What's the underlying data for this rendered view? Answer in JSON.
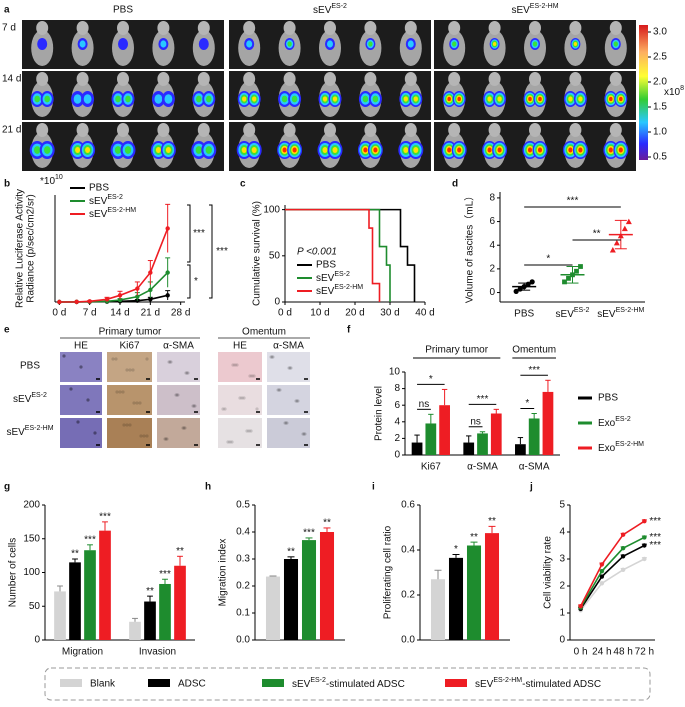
{
  "panel_a": {
    "label": "a",
    "groups": [
      "PBS",
      [
        "sEV",
        "ES-2"
      ],
      [
        "sEV",
        "ES-2-HM"
      ]
    ],
    "rows": [
      "7 d",
      "14 d",
      "21 d"
    ],
    "colorbar": {
      "lim": [
        0.44,
        3.14
      ],
      "ticks": [
        0.5,
        {
          "value": 1.0,
          "label": "1.0"
        },
        1.5,
        {
          "value": 2.0,
          "label": "2.0"
        },
        2.5,
        {
          "value": 3.0,
          "label": "3.0"
        }
      ],
      "unit": [
        "x10",
        "8"
      ]
    }
  },
  "panel_e": {
    "label": "e",
    "groups": [
      "Primary tumor",
      "Omentum"
    ],
    "columns": [
      "HE",
      "Ki67",
      "α-SMA",
      "HE",
      "α-SMA"
    ],
    "rows": [
      "PBS",
      [
        "sEV",
        "ES-2"
      ],
      [
        "sEV",
        "ES-2-HM"
      ]
    ]
  },
  "chart_data": [
    {
      "type": "line",
      "label": "b",
      "scale_note": [
        "*10",
        "10"
      ],
      "ylabel": [
        "Relative Luciferase Activity",
        "Radiance (p/sec/cm2/sr)"
      ],
      "x": [
        0,
        4,
        7,
        11,
        14,
        18,
        21,
        25
      ],
      "xlim": [
        -1,
        29
      ],
      "xticks": [
        {
          "value": 0,
          "label": "0 d"
        },
        {
          "value": 7,
          "label": "7 d"
        },
        {
          "value": 14,
          "label": "14 d"
        },
        {
          "value": 21,
          "label": "21 d"
        },
        {
          "value": 28,
          "label": "28 d"
        }
      ],
      "ylim": [
        0,
        8
      ],
      "legend": "upper left",
      "series": [
        {
          "name": "PBS",
          "color": "#000000",
          "values": [
            0,
            0,
            0.01,
            0.02,
            0.05,
            0.1,
            0.2,
            0.5
          ],
          "errors": [
            0,
            0,
            0,
            0.02,
            0.05,
            0.08,
            0.15,
            0.35
          ]
        },
        {
          "name": [
            "sEV",
            "ES-2"
          ],
          "color": "#1e8c2e",
          "values": [
            0,
            0.01,
            0.02,
            0.05,
            0.15,
            0.4,
            0.9,
            2.2
          ],
          "errors": [
            0,
            0,
            0.02,
            0.05,
            0.1,
            0.3,
            0.6,
            1.1
          ]
        },
        {
          "name": [
            "sEV",
            "ES-2-HM"
          ],
          "color": "#ee1d23",
          "values": [
            0,
            0.01,
            0.05,
            0.2,
            0.5,
            1.0,
            2.2,
            5.5
          ],
          "errors": [
            0,
            0.01,
            0.05,
            0.15,
            0.3,
            0.5,
            0.9,
            1.8
          ]
        }
      ],
      "annotations": [
        "***",
        "*",
        "***"
      ]
    },
    {
      "type": "line",
      "step": true,
      "label": "c",
      "ylabel": [
        "Cumulative survival (%)"
      ],
      "annotation": "P <0.001",
      "xlim": [
        0,
        40
      ],
      "xticks": [
        {
          "value": 0,
          "label": "0 d"
        },
        {
          "value": 10,
          "label": "10 d"
        },
        {
          "value": 20,
          "label": "20 d"
        },
        {
          "value": 30,
          "label": "30 d"
        },
        {
          "value": 40,
          "label": "40 d"
        }
      ],
      "ylim": [
        0,
        105
      ],
      "yticks": [
        0,
        50,
        100
      ],
      "legend": "lower left",
      "series": [
        {
          "name": "PBS",
          "color": "#000000",
          "x": [
            0,
            33,
            35,
            37
          ],
          "values": [
            100,
            60,
            40,
            0
          ]
        },
        {
          "name": [
            "sEV",
            "ES-2"
          ],
          "color": "#1e8c2e",
          "x": [
            0,
            27,
            29,
            30
          ],
          "values": [
            100,
            60,
            40,
            0
          ]
        },
        {
          "name": [
            "sEV",
            "ES-2-HM"
          ],
          "color": "#ee1d23",
          "x": [
            0,
            24,
            25,
            27
          ],
          "values": [
            100,
            80,
            20,
            0
          ]
        }
      ]
    },
    {
      "type": "scatter",
      "label": "d",
      "ylabel": [
        "Volume of ascites（mL）"
      ],
      "categories": [
        "PBS",
        [
          "sEV",
          "ES-2"
        ],
        [
          "sEV",
          "ES-2-HM"
        ]
      ],
      "ylim": [
        -0.8,
        8.5
      ],
      "yticks": [
        0,
        2,
        4,
        6,
        8
      ],
      "colors": [
        "#000000",
        "#1e8c2e",
        "#ee1d23"
      ],
      "points": [
        [
          0.1,
          0.3,
          0.5,
          0.7,
          0.9
        ],
        [
          0.9,
          1.2,
          1.5,
          1.8,
          2.2
        ],
        [
          3.6,
          4.2,
          4.8,
          5.4,
          6.0
        ]
      ],
      "values": [
        0.5,
        1.5,
        4.9
      ],
      "errors": [
        0.3,
        0.7,
        1.2
      ],
      "significance": [
        "*",
        "**",
        "***"
      ]
    },
    {
      "type": "bar",
      "label": "f",
      "ylabel": [
        "Protein level"
      ],
      "groups": [
        "Primary tumor",
        "Omentum"
      ],
      "categories": [
        "Ki67",
        "α-SMA",
        "α-SMA"
      ],
      "ylim": [
        0,
        10
      ],
      "yticks": [
        0,
        2,
        4,
        6,
        8,
        10
      ],
      "legend": "right",
      "series": [
        {
          "name": "PBS",
          "color": "#000000",
          "values": [
            1.5,
            1.5,
            1.3
          ],
          "errors": [
            0.9,
            0.8,
            0.8
          ]
        },
        {
          "name": [
            "Exo",
            "ES-2"
          ],
          "color": "#1e8c2e",
          "values": [
            3.8,
            2.6,
            4.4
          ],
          "errors": [
            1.1,
            0.2,
            0.6
          ]
        },
        {
          "name": [
            "Exo",
            "ES-2-HM"
          ],
          "color": "#ee1d23",
          "values": [
            6.0,
            5.0,
            7.6
          ],
          "errors": [
            1.9,
            0.5,
            1.4
          ]
        }
      ],
      "significance": [
        [
          "ns",
          "*"
        ],
        [
          "ns",
          "***"
        ],
        [
          "*",
          "***"
        ]
      ]
    },
    {
      "type": "bar",
      "label": "g",
      "ylabel": [
        "Number of cells"
      ],
      "categories": [
        "Migration",
        "Invasion"
      ],
      "ylim": [
        0,
        200
      ],
      "yticks": [
        0,
        50,
        100,
        150,
        200
      ],
      "legend": "bottom",
      "series": [
        {
          "name": "Blank",
          "color": "#d4d4d4",
          "values": [
            72,
            27
          ],
          "errors": [
            8,
            5
          ],
          "significance": [
            null,
            null
          ]
        },
        {
          "name": "ADSC",
          "color": "#000000",
          "values": [
            115,
            57
          ],
          "errors": [
            5,
            8
          ],
          "significance": [
            "**",
            "**"
          ]
        },
        {
          "name": [
            "sEV",
            "ES-2",
            "-stimulated ADSC"
          ],
          "color": "#1e8c2e",
          "values": [
            133,
            83
          ],
          "errors": [
            8,
            7
          ],
          "significance": [
            "***",
            "***"
          ]
        },
        {
          "name": [
            "sEV",
            "ES-2-HM",
            "-stimulated ADSC"
          ],
          "color": "#ee1d23",
          "values": [
            162,
            110
          ],
          "errors": [
            13,
            14
          ],
          "significance": [
            "***",
            "**"
          ]
        }
      ]
    },
    {
      "type": "bar",
      "label": "h",
      "ylabel": [
        "Migration index"
      ],
      "ylim": [
        0,
        0.5
      ],
      "yticks": [
        {
          "value": 0,
          "label": "0.0"
        },
        0.1,
        0.2,
        0.3,
        0.4,
        0.5
      ],
      "series": [
        {
          "color": "#d4d4d4",
          "values": [
            0.235
          ],
          "errors": [
            0.002
          ],
          "significance": [
            null
          ]
        },
        {
          "color": "#000000",
          "values": [
            0.3
          ],
          "errors": [
            0.008
          ],
          "significance": [
            "**"
          ]
        },
        {
          "color": "#1e8c2e",
          "values": [
            0.37
          ],
          "errors": [
            0.008
          ],
          "significance": [
            "***"
          ]
        },
        {
          "color": "#ee1d23",
          "values": [
            0.4
          ],
          "errors": [
            0.015
          ],
          "significance": [
            "**"
          ]
        }
      ]
    },
    {
      "type": "bar",
      "label": "i",
      "ylabel": [
        "Proliferating cell ratio"
      ],
      "ylim": [
        0,
        0.6
      ],
      "yticks": [
        {
          "value": 0,
          "label": "0.0"
        },
        0.2,
        0.4,
        0.6
      ],
      "series": [
        {
          "color": "#d4d4d4",
          "values": [
            0.27
          ],
          "errors": [
            0.04
          ],
          "significance": [
            null
          ]
        },
        {
          "color": "#000000",
          "values": [
            0.365
          ],
          "errors": [
            0.015
          ],
          "significance": [
            "*"
          ]
        },
        {
          "color": "#1e8c2e",
          "values": [
            0.42
          ],
          "errors": [
            0.015
          ],
          "significance": [
            "**"
          ]
        },
        {
          "color": "#ee1d23",
          "values": [
            0.475
          ],
          "errors": [
            0.03
          ],
          "significance": [
            "**"
          ]
        }
      ]
    },
    {
      "type": "line",
      "label": "j",
      "ylabel": [
        "Cell viability rate"
      ],
      "categories": [
        "0 h",
        "24 h",
        "48 h",
        "72 h"
      ],
      "ylim": [
        0,
        5
      ],
      "yticks": [
        0,
        1,
        2,
        3,
        4,
        5
      ],
      "series": [
        {
          "color": "#d4d4d4",
          "values": [
            1.1,
            2.1,
            2.6,
            3.0
          ],
          "errors": [
            0.05,
            0.05,
            0.05,
            0.05
          ],
          "significance": [
            null,
            null,
            null,
            null
          ]
        },
        {
          "color": "#000000",
          "values": [
            1.15,
            2.35,
            3.1,
            3.5
          ],
          "errors": [
            0.05,
            0.05,
            0.05,
            0.05
          ],
          "significance": [
            null,
            null,
            null,
            "***"
          ]
        },
        {
          "color": "#1e8c2e",
          "values": [
            1.2,
            2.55,
            3.4,
            3.8
          ],
          "errors": [
            0.05,
            0.05,
            0.05,
            0.05
          ],
          "significance": [
            null,
            null,
            null,
            "***"
          ]
        },
        {
          "color": "#ee1d23",
          "values": [
            1.25,
            2.8,
            3.9,
            4.4
          ],
          "errors": [
            0.05,
            0.05,
            0.05,
            0.05
          ],
          "significance": [
            null,
            null,
            null,
            "***"
          ]
        }
      ]
    }
  ]
}
